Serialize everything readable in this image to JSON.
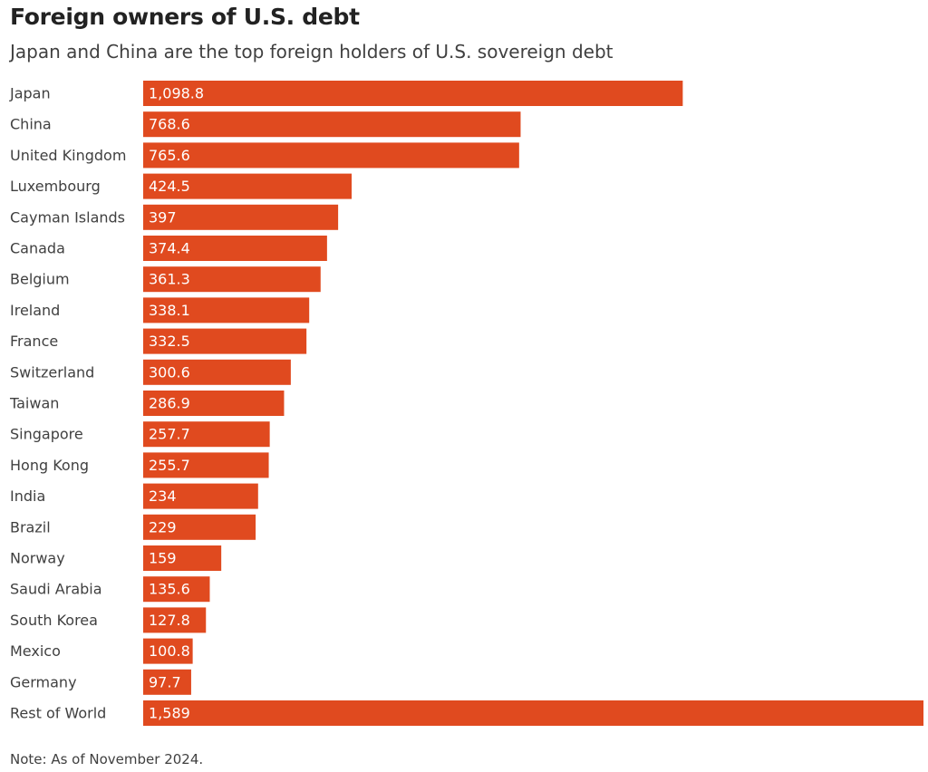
{
  "title": "Foreign owners of U.S. debt",
  "subtitle": "Japan and China are the top foreign holders of U.S. sovereign debt",
  "note": "Note: As of November 2024.",
  "colors": {
    "bar": "#e04a1f",
    "label_inside": "#ffffff",
    "label_outside": "#404040"
  },
  "chart_data": {
    "type": "bar",
    "orientation": "horizontal",
    "title": "Foreign owners of U.S. debt",
    "subtitle": "Japan and China are the top foreign holders of U.S. sovereign debt",
    "xlabel": "",
    "ylabel": "",
    "xlim": [
      0,
      1589
    ],
    "grid": false,
    "categories": [
      "Japan",
      "China",
      "United Kingdom",
      "Luxembourg",
      "Cayman Islands",
      "Canada",
      "Belgium",
      "Ireland",
      "France",
      "Switzerland",
      "Taiwan",
      "Singapore",
      "Hong Kong",
      "India",
      "Brazil",
      "Norway",
      "Saudi Arabia",
      "South Korea",
      "Mexico",
      "Germany",
      "Rest of World"
    ],
    "values": [
      1098.8,
      768.6,
      765.6,
      424.5,
      397,
      374.4,
      361.3,
      338.1,
      332.5,
      300.6,
      286.9,
      257.7,
      255.7,
      234,
      229,
      159,
      135.6,
      127.8,
      100.8,
      97.7,
      1589
    ],
    "value_labels": [
      "1,098.8",
      "768.6",
      "765.6",
      "424.5",
      "397",
      "374.4",
      "361.3",
      "338.1",
      "332.5",
      "300.6",
      "286.9",
      "257.7",
      "255.7",
      "234",
      "229",
      "159",
      "135.6",
      "127.8",
      "100.8",
      "97.7",
      "1,589"
    ]
  }
}
